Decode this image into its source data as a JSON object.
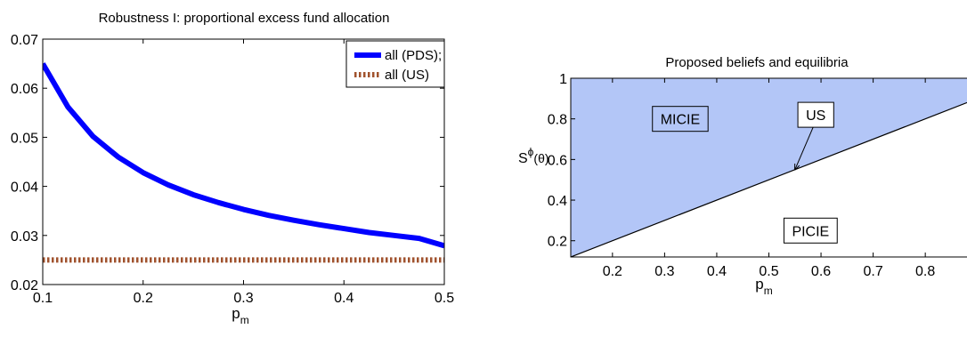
{
  "chart_data": [
    {
      "type": "line",
      "title": "Robustness I: proportional excess fund allocation",
      "xlabel": "p",
      "xlabel_subscript": "m",
      "ylabel": "",
      "xlim": [
        0.1,
        0.5
      ],
      "ylim": [
        0.02,
        0.07
      ],
      "xticks": [
        0.1,
        0.2,
        0.3,
        0.4,
        0.5
      ],
      "xtick_labels": [
        "0.1",
        "0.2",
        "0.3",
        "0.4",
        "0.5"
      ],
      "yticks": [
        0.02,
        0.03,
        0.04,
        0.05,
        0.06,
        0.07
      ],
      "ytick_labels": [
        "0.02",
        "0.03",
        "0.04",
        "0.05",
        "0.06",
        "0.07"
      ],
      "grid": false,
      "legend_position": "top-right",
      "series": [
        {
          "name": "all (PDS);",
          "color": "#0000ff",
          "style": "solid",
          "x": [
            0.1,
            0.125,
            0.15,
            0.175,
            0.2,
            0.225,
            0.25,
            0.275,
            0.3,
            0.325,
            0.35,
            0.375,
            0.4,
            0.425,
            0.45,
            0.475,
            0.5
          ],
          "y": [
            0.065,
            0.0562,
            0.0502,
            0.046,
            0.0428,
            0.0403,
            0.0383,
            0.0367,
            0.0353,
            0.0341,
            0.0331,
            0.0322,
            0.0314,
            0.0306,
            0.03,
            0.0294,
            0.0279
          ]
        },
        {
          "name": "all (US)",
          "color": "#a0522d",
          "style": "dotted",
          "x": [
            0.1,
            0.5
          ],
          "y": [
            0.025,
            0.025
          ]
        }
      ]
    },
    {
      "type": "area",
      "title": "Proposed beliefs and equilibria",
      "xlabel": "p",
      "xlabel_subscript": "m",
      "ylabel": "S",
      "ylabel_superscript": "ϕ",
      "ylabel_suffix": "(θ)",
      "xlim": [
        0.12,
        0.88
      ],
      "ylim": [
        0.12,
        1.0
      ],
      "xticks": [
        0.2,
        0.3,
        0.4,
        0.5,
        0.6,
        0.7,
        0.8
      ],
      "xtick_labels": [
        "0.2",
        "0.3",
        "0.4",
        "0.5",
        "0.6",
        "0.7",
        "0.8"
      ],
      "yticks": [
        0.2,
        0.4,
        0.6,
        0.8,
        1.0
      ],
      "ytick_labels": [
        "0.2",
        "0.4",
        "0.6",
        "0.8",
        "1"
      ],
      "grid": false,
      "boundary_line": {
        "x": [
          0.12,
          0.88
        ],
        "y": [
          0.12,
          0.88
        ]
      },
      "fill_color": "#b3c6f7",
      "regions": [
        {
          "label": "MICIE",
          "x": 0.33,
          "y": 0.8,
          "fill": "above-line"
        },
        {
          "label": "PICIE",
          "x": 0.58,
          "y": 0.25,
          "fill": "below-line"
        }
      ],
      "annotations": [
        {
          "label": "US",
          "text_x": 0.59,
          "text_y": 0.82,
          "arrow_to_x": 0.55,
          "arrow_to_y": 0.55
        }
      ]
    }
  ]
}
